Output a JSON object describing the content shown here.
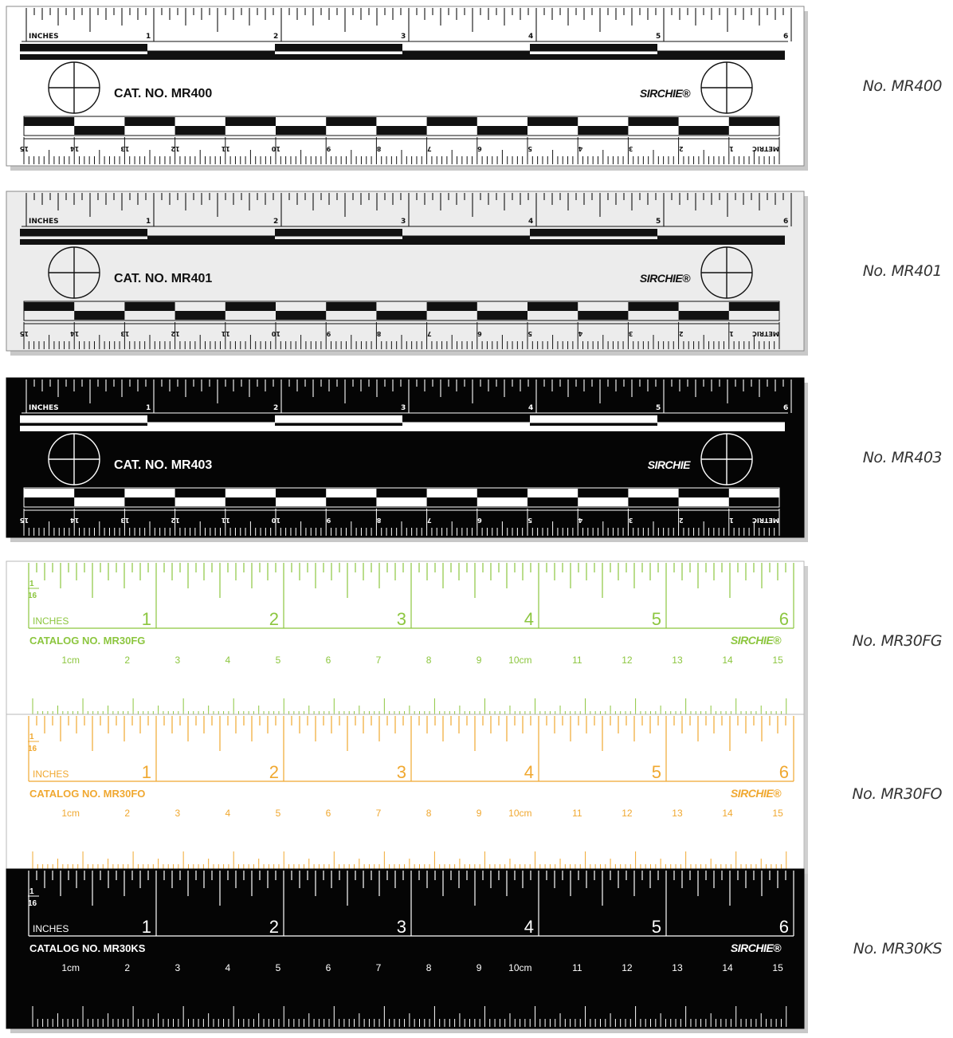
{
  "products": [
    {
      "id": "mr400",
      "model_label": "No. MR400",
      "style": "abfo",
      "theme": {
        "bg": "#ffffff",
        "ink": "#111111",
        "border": "#8a8a8a",
        "shadow": "#c8c8c8"
      },
      "inches_label": "INCHES",
      "inch_numbers": [
        "1",
        "2",
        "3",
        "4",
        "5",
        "6"
      ],
      "cat_prefix": "CAT. NO.",
      "cat_number": "MR400",
      "brand": "SIRCHIE®",
      "metric_label": "METRIC",
      "metric_numbers": [
        "1",
        "2",
        "3",
        "4",
        "5",
        "6",
        "7",
        "8",
        "9",
        "10",
        "11",
        "12",
        "13",
        "14",
        "15"
      ]
    },
    {
      "id": "mr401",
      "model_label": "No. MR401",
      "style": "abfo",
      "theme": {
        "bg": "#ececec",
        "ink": "#111111",
        "border": "#8a8a8a",
        "shadow": "#c8c8c8"
      },
      "inches_label": "INCHES",
      "inch_numbers": [
        "1",
        "2",
        "3",
        "4",
        "5",
        "6"
      ],
      "cat_prefix": "CAT. NO.",
      "cat_number": "MR401",
      "brand": "SIRCHIE®",
      "metric_label": "METRIC",
      "metric_numbers": [
        "1",
        "2",
        "3",
        "4",
        "5",
        "6",
        "7",
        "8",
        "9",
        "10",
        "11",
        "12",
        "13",
        "14",
        "15"
      ]
    },
    {
      "id": "mr403",
      "model_label": "No. MR403",
      "style": "abfo",
      "theme": {
        "bg": "#050505",
        "ink": "#ffffff",
        "border": "#050505",
        "shadow": "#c8c8c8"
      },
      "inches_label": "INCHES",
      "inch_numbers": [
        "1",
        "2",
        "3",
        "4",
        "5",
        "6"
      ],
      "cat_prefix": "CAT. NO.",
      "cat_number": "MR403",
      "brand": "SIRCHIE",
      "metric_label": "METRIC",
      "metric_numbers": [
        "1",
        "2",
        "3",
        "4",
        "5",
        "6",
        "7",
        "8",
        "9",
        "10",
        "11",
        "12",
        "13",
        "14",
        "15"
      ]
    },
    {
      "id": "mr30fg",
      "model_label": "No. MR30FG",
      "style": "flex",
      "theme": {
        "bg": "#ffffff",
        "ink": "#8cc63f",
        "border": "#b8b8b8",
        "shadow": "#d0d0d0"
      },
      "fraction_top": "1",
      "fraction_bottom": "16",
      "inches_label": "INCHES",
      "inch_numbers": [
        "1",
        "2",
        "3",
        "4",
        "5",
        "6"
      ],
      "catalog_label": "CATALOG NO. MR30FG",
      "brand": "SIRCHIE®",
      "cm_numbers": [
        "1cm",
        "2",
        "3",
        "4",
        "5",
        "6",
        "7",
        "8",
        "9",
        "10cm",
        "11",
        "12",
        "13",
        "14",
        "15"
      ]
    },
    {
      "id": "mr30fo",
      "model_label": "No. MR30FO",
      "style": "flex",
      "theme": {
        "bg": "#ffffff",
        "ink": "#f0a830",
        "border": "#b8b8b8",
        "shadow": "#d0d0d0"
      },
      "fraction_top": "1",
      "fraction_bottom": "16",
      "inches_label": "INCHES",
      "inch_numbers": [
        "1",
        "2",
        "3",
        "4",
        "5",
        "6"
      ],
      "catalog_label": "CATALOG NO. MR30FO",
      "brand": "SIRCHIE®",
      "cm_numbers": [
        "1cm",
        "2",
        "3",
        "4",
        "5",
        "6",
        "7",
        "8",
        "9",
        "10cm",
        "11",
        "12",
        "13",
        "14",
        "15"
      ]
    },
    {
      "id": "mr30ks",
      "model_label": "No. MR30KS",
      "style": "flex",
      "theme": {
        "bg": "#050505",
        "ink": "#ffffff",
        "border": "#050505",
        "shadow": "#c8c8c8"
      },
      "fraction_top": "1",
      "fraction_bottom": "16",
      "inches_label": "INCHES",
      "inch_numbers": [
        "1",
        "2",
        "3",
        "4",
        "5",
        "6"
      ],
      "catalog_label": "CATALOG NO. MR30KS",
      "brand": "SIRCHIE®",
      "cm_numbers": [
        "1cm",
        "2",
        "3",
        "4",
        "5",
        "6",
        "7",
        "8",
        "9",
        "10cm",
        "11",
        "12",
        "13",
        "14",
        "15"
      ]
    }
  ]
}
